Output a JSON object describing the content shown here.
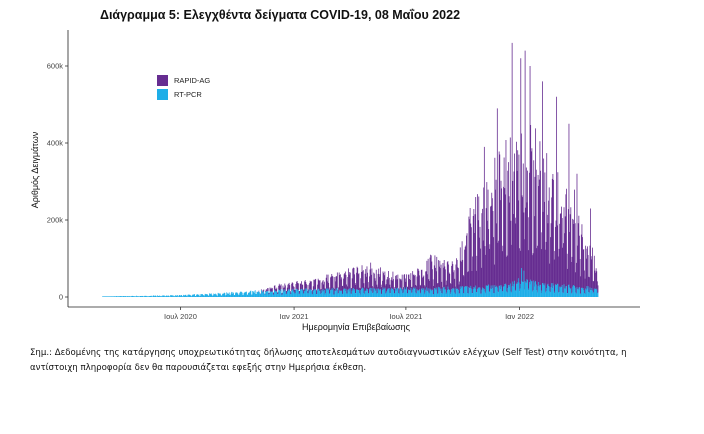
{
  "chart_data": {
    "type": "bar",
    "title": "Διάγραμμα 5: Ελεγχθέντα δείγματα COVID-19, 08 Μαΐου 2022",
    "xlabel": "Ημερομηνία Επιβεβαίωσης",
    "ylabel": "Αριθμός Δειγμάτων",
    "stacked": true,
    "x_range": [
      "2020-02-26",
      "2022-05-08"
    ],
    "ylim": [
      0,
      690000
    ],
    "yticks": [
      0,
      200000,
      400000,
      600000
    ],
    "ytick_labels": [
      "0",
      "200k",
      "400k",
      "600k"
    ],
    "xticks": [
      "2020-07-01",
      "2021-01-01",
      "2021-07-01",
      "2022-01-01"
    ],
    "xtick_labels": [
      "Ιουλ 2020",
      "Ιαν 2021",
      "Ιουλ 2021",
      "Ιαν 2022"
    ],
    "grid": false,
    "legend_position": "top-left",
    "series": [
      {
        "name": "RAPID-AG",
        "color": "#662d91",
        "keyframes": [
          [
            "2020-02-26",
            0
          ],
          [
            "2020-11-01",
            0
          ],
          [
            "2020-11-15",
            5000
          ],
          [
            "2020-12-01",
            12000
          ],
          [
            "2021-01-01",
            18000
          ],
          [
            "2021-02-01",
            22000
          ],
          [
            "2021-03-01",
            32000
          ],
          [
            "2021-04-01",
            45000
          ],
          [
            "2021-05-01",
            55000
          ],
          [
            "2021-06-01",
            40000
          ],
          [
            "2021-07-01",
            30000
          ],
          [
            "2021-08-01",
            60000
          ],
          [
            "2021-08-15",
            80000
          ],
          [
            "2021-09-01",
            58000
          ],
          [
            "2021-09-25",
            70000
          ],
          [
            "2021-10-10",
            160000
          ],
          [
            "2021-11-01",
            220000
          ],
          [
            "2021-12-01",
            300000
          ],
          [
            "2022-01-05",
            360000
          ],
          [
            "2022-02-01",
            310000
          ],
          [
            "2022-03-01",
            260000
          ],
          [
            "2022-04-01",
            200000
          ],
          [
            "2022-05-08",
            60000
          ]
        ],
        "peaks": [
          [
            "2021-11-05",
            390000
          ],
          [
            "2021-11-26",
            490000
          ],
          [
            "2021-12-20",
            660000
          ],
          [
            "2022-01-03",
            620000
          ],
          [
            "2022-01-10",
            640000
          ],
          [
            "2022-01-18",
            600000
          ],
          [
            "2022-02-07",
            560000
          ],
          [
            "2022-03-02",
            520000
          ],
          [
            "2022-03-22",
            450000
          ],
          [
            "2022-04-04",
            320000
          ],
          [
            "2022-04-26",
            230000
          ]
        ]
      },
      {
        "name": "RT-PCR",
        "color": "#1eaee8",
        "keyframes": [
          [
            "2020-02-26",
            0
          ],
          [
            "2020-03-15",
            2000
          ],
          [
            "2020-05-01",
            3000
          ],
          [
            "2020-07-01",
            4500
          ],
          [
            "2020-09-01",
            9000
          ],
          [
            "2020-11-01",
            15000
          ],
          [
            "2021-01-01",
            18000
          ],
          [
            "2021-04-01",
            20000
          ],
          [
            "2021-07-01",
            21000
          ],
          [
            "2021-09-01",
            22000
          ],
          [
            "2021-11-01",
            26000
          ],
          [
            "2021-12-15",
            30000
          ],
          [
            "2022-01-05",
            45000
          ],
          [
            "2022-02-01",
            33000
          ],
          [
            "2022-03-01",
            30000
          ],
          [
            "2022-04-01",
            26000
          ],
          [
            "2022-05-08",
            22000
          ]
        ],
        "peaks": [
          [
            "2022-01-04",
            75000
          ],
          [
            "2022-01-08",
            68000
          ]
        ]
      }
    ]
  },
  "note": "Σημ.: Δεδομένης της κατάργησης υποχρεωτικότητας δήλωσης αποτελεσμάτων αυτοδιαγνωστικών ελέγχων (Self Test) στην κοινότητα, η αντίστοιχη πληροφορία δεν θα παρουσιάζεται εφεξής στην Ημερήσια έκθεση."
}
